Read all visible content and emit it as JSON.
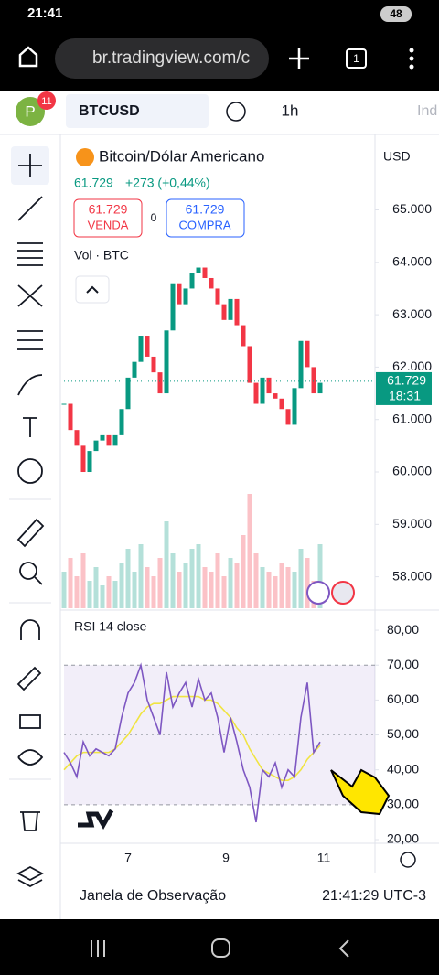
{
  "status_bar": {
    "time": "21:41",
    "battery": "48"
  },
  "browser": {
    "url": "br.tradingview.com/c",
    "tabs": "1"
  },
  "toolbar": {
    "avatar": "P",
    "badge": "11",
    "symbol": "BTCUSD",
    "interval": "1h",
    "indicators": "Ind"
  },
  "legend": {
    "title": "Bitcoin/Dólar Americano",
    "currency": "USD",
    "last": "61.729",
    "change": "+273 (+0,44%)",
    "sell_price": "61.729",
    "sell_label": "VENDA",
    "spread": "0",
    "buy_price": "61.729",
    "buy_label": "COMPRA",
    "volume_label": "Vol · BTC"
  },
  "chart_data": [
    {
      "type": "candlestick",
      "values": [
        61300,
        60800,
        60500,
        60000,
        60400,
        60600,
        60700,
        60500,
        60700,
        61200,
        61800,
        62100,
        62600,
        62200,
        61900,
        61500,
        62700,
        63600,
        63200,
        63500,
        63800,
        63900,
        63700,
        63500,
        63200,
        62900,
        63300,
        62800,
        62400,
        61700,
        61300,
        61800,
        61500,
        61400,
        61200,
        60900,
        61600,
        62500,
        62000,
        61500,
        61700
      ],
      "volume": [
        40,
        55,
        35,
        60,
        30,
        45,
        25,
        35,
        30,
        50,
        65,
        40,
        70,
        45,
        35,
        55,
        95,
        60,
        40,
        50,
        65,
        70,
        45,
        40,
        60,
        35,
        55,
        50,
        80,
        125,
        60,
        45,
        40,
        35,
        50,
        45,
        40,
        65,
        55,
        30,
        70
      ],
      "volume_ylim": [
        0,
        130
      ],
      "ylim": [
        57400,
        66300
      ],
      "yticks": [
        {
          "value": 65000,
          "label": "65.000"
        },
        {
          "value": 64000,
          "label": "64.000"
        },
        {
          "value": 63000,
          "label": "63.000"
        },
        {
          "value": 62000,
          "label": "62.000"
        },
        {
          "value": 61000,
          "label": "61.000"
        },
        {
          "value": 60000,
          "label": "60.000"
        },
        {
          "value": 59000,
          "label": "59.000"
        },
        {
          "value": 58000,
          "label": "58.000"
        }
      ],
      "last_price": {
        "value": 61729,
        "label": "61.729"
      },
      "last_time": "18:31",
      "up_color": "#089981",
      "down_color": "#f23645"
    },
    {
      "type": "line",
      "title": "RSI 14 close",
      "series": [
        {
          "color": "#7e57c2",
          "values": [
            45,
            42,
            38,
            48,
            44,
            46,
            45,
            44,
            46,
            55,
            62,
            65,
            70,
            60,
            55,
            50,
            68,
            58,
            62,
            65,
            58,
            66,
            60,
            62,
            55,
            45,
            55,
            48,
            40,
            35,
            25,
            40,
            38,
            42,
            35,
            40,
            38,
            55,
            65,
            45,
            48
          ]
        },
        {
          "color": "#f0e442",
          "values": [
            40,
            42,
            44,
            45,
            45,
            45,
            45,
            45,
            46,
            48,
            50,
            53,
            56,
            58,
            59,
            59,
            60,
            61,
            61,
            61,
            61,
            61,
            60,
            60,
            59,
            57,
            55,
            52,
            50,
            46,
            43,
            40,
            39,
            38,
            37,
            37,
            38,
            40,
            43,
            45,
            47
          ]
        }
      ],
      "ylim": [
        20,
        85
      ],
      "yticks": [
        {
          "value": 80,
          "label": "80,00"
        },
        {
          "value": 70,
          "label": "70,00"
        },
        {
          "value": 60,
          "label": "60,00"
        },
        {
          "value": 50,
          "label": "50,00"
        },
        {
          "value": 40,
          "label": "40,00"
        },
        {
          "value": 30,
          "label": "30,00"
        },
        {
          "value": 20,
          "label": "20,00"
        }
      ],
      "band": [
        30,
        70
      ],
      "mid": 50
    }
  ],
  "x_labels": [
    "7",
    "9",
    "11"
  ],
  "footer": {
    "watchlist": "Janela de Observação",
    "clock": "21:41:29 UTC-3"
  }
}
